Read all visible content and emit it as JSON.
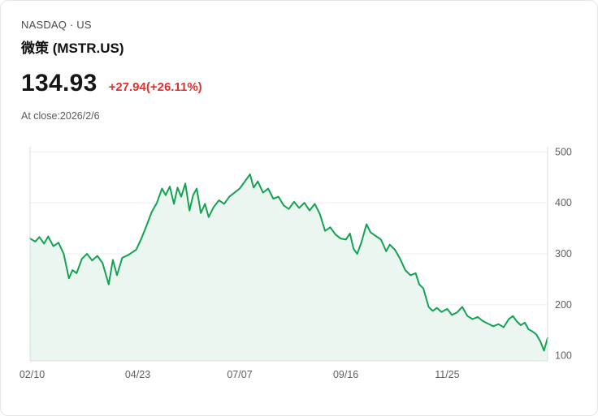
{
  "header": {
    "exchange": "NASDAQ · US",
    "name": "微策 (MSTR.US)",
    "price": "134.93",
    "change": "+27.94(+26.11%)",
    "close_note": "At close:2026/2/6"
  },
  "colors": {
    "line": "#12a352",
    "fill": "#e9f5ee",
    "change": "#e03131",
    "grid": "#ececec",
    "axis": "#dcdcdc",
    "axis_text": "#5f5f5f"
  },
  "chart_data": {
    "type": "area",
    "series_name": "MSTR.US close price",
    "title": "",
    "xlabel": "",
    "ylabel": "",
    "ylim": [
      90,
      510
    ],
    "y_ticks": [
      500,
      400,
      300,
      200,
      100
    ],
    "x_ticks": [
      {
        "label": "02/10",
        "f": 0.004
      },
      {
        "label": "04/23",
        "f": 0.208
      },
      {
        "label": "07/07",
        "f": 0.405
      },
      {
        "label": "09/16",
        "f": 0.61
      },
      {
        "label": "11/25",
        "f": 0.806
      }
    ],
    "points": [
      [
        0.0,
        330
      ],
      [
        0.01,
        324
      ],
      [
        0.018,
        333
      ],
      [
        0.027,
        320
      ],
      [
        0.035,
        334
      ],
      [
        0.045,
        315
      ],
      [
        0.055,
        322
      ],
      [
        0.065,
        300
      ],
      [
        0.075,
        252
      ],
      [
        0.082,
        268
      ],
      [
        0.09,
        262
      ],
      [
        0.1,
        290
      ],
      [
        0.11,
        300
      ],
      [
        0.12,
        287
      ],
      [
        0.13,
        296
      ],
      [
        0.14,
        282
      ],
      [
        0.152,
        240
      ],
      [
        0.16,
        288
      ],
      [
        0.168,
        258
      ],
      [
        0.178,
        292
      ],
      [
        0.19,
        298
      ],
      [
        0.205,
        308
      ],
      [
        0.215,
        330
      ],
      [
        0.225,
        355
      ],
      [
        0.235,
        382
      ],
      [
        0.245,
        400
      ],
      [
        0.255,
        428
      ],
      [
        0.262,
        415
      ],
      [
        0.27,
        432
      ],
      [
        0.278,
        398
      ],
      [
        0.285,
        430
      ],
      [
        0.292,
        412
      ],
      [
        0.3,
        438
      ],
      [
        0.308,
        385
      ],
      [
        0.315,
        415
      ],
      [
        0.322,
        428
      ],
      [
        0.33,
        380
      ],
      [
        0.338,
        398
      ],
      [
        0.345,
        372
      ],
      [
        0.355,
        392
      ],
      [
        0.365,
        405
      ],
      [
        0.375,
        398
      ],
      [
        0.385,
        412
      ],
      [
        0.395,
        420
      ],
      [
        0.405,
        428
      ],
      [
        0.415,
        442
      ],
      [
        0.425,
        456
      ],
      [
        0.432,
        430
      ],
      [
        0.44,
        442
      ],
      [
        0.45,
        420
      ],
      [
        0.46,
        428
      ],
      [
        0.47,
        408
      ],
      [
        0.48,
        412
      ],
      [
        0.49,
        395
      ],
      [
        0.5,
        388
      ],
      [
        0.51,
        402
      ],
      [
        0.52,
        390
      ],
      [
        0.53,
        400
      ],
      [
        0.54,
        385
      ],
      [
        0.55,
        398
      ],
      [
        0.56,
        378
      ],
      [
        0.57,
        345
      ],
      [
        0.58,
        352
      ],
      [
        0.59,
        338
      ],
      [
        0.6,
        330
      ],
      [
        0.61,
        328
      ],
      [
        0.618,
        340
      ],
      [
        0.625,
        310
      ],
      [
        0.632,
        300
      ],
      [
        0.64,
        322
      ],
      [
        0.65,
        358
      ],
      [
        0.658,
        342
      ],
      [
        0.668,
        335
      ],
      [
        0.678,
        328
      ],
      [
        0.688,
        305
      ],
      [
        0.695,
        318
      ],
      [
        0.705,
        308
      ],
      [
        0.715,
        290
      ],
      [
        0.725,
        268
      ],
      [
        0.735,
        258
      ],
      [
        0.745,
        262
      ],
      [
        0.752,
        240
      ],
      [
        0.76,
        232
      ],
      [
        0.77,
        196
      ],
      [
        0.778,
        188
      ],
      [
        0.786,
        194
      ],
      [
        0.795,
        186
      ],
      [
        0.806,
        192
      ],
      [
        0.815,
        180
      ],
      [
        0.825,
        185
      ],
      [
        0.835,
        196
      ],
      [
        0.845,
        178
      ],
      [
        0.855,
        172
      ],
      [
        0.865,
        176
      ],
      [
        0.875,
        168
      ],
      [
        0.885,
        163
      ],
      [
        0.895,
        158
      ],
      [
        0.905,
        162
      ],
      [
        0.915,
        156
      ],
      [
        0.925,
        172
      ],
      [
        0.933,
        178
      ],
      [
        0.94,
        168
      ],
      [
        0.948,
        160
      ],
      [
        0.956,
        165
      ],
      [
        0.963,
        152
      ],
      [
        0.97,
        148
      ],
      [
        0.978,
        142
      ],
      [
        0.986,
        128
      ],
      [
        0.993,
        110
      ],
      [
        1.0,
        134.93
      ]
    ]
  }
}
